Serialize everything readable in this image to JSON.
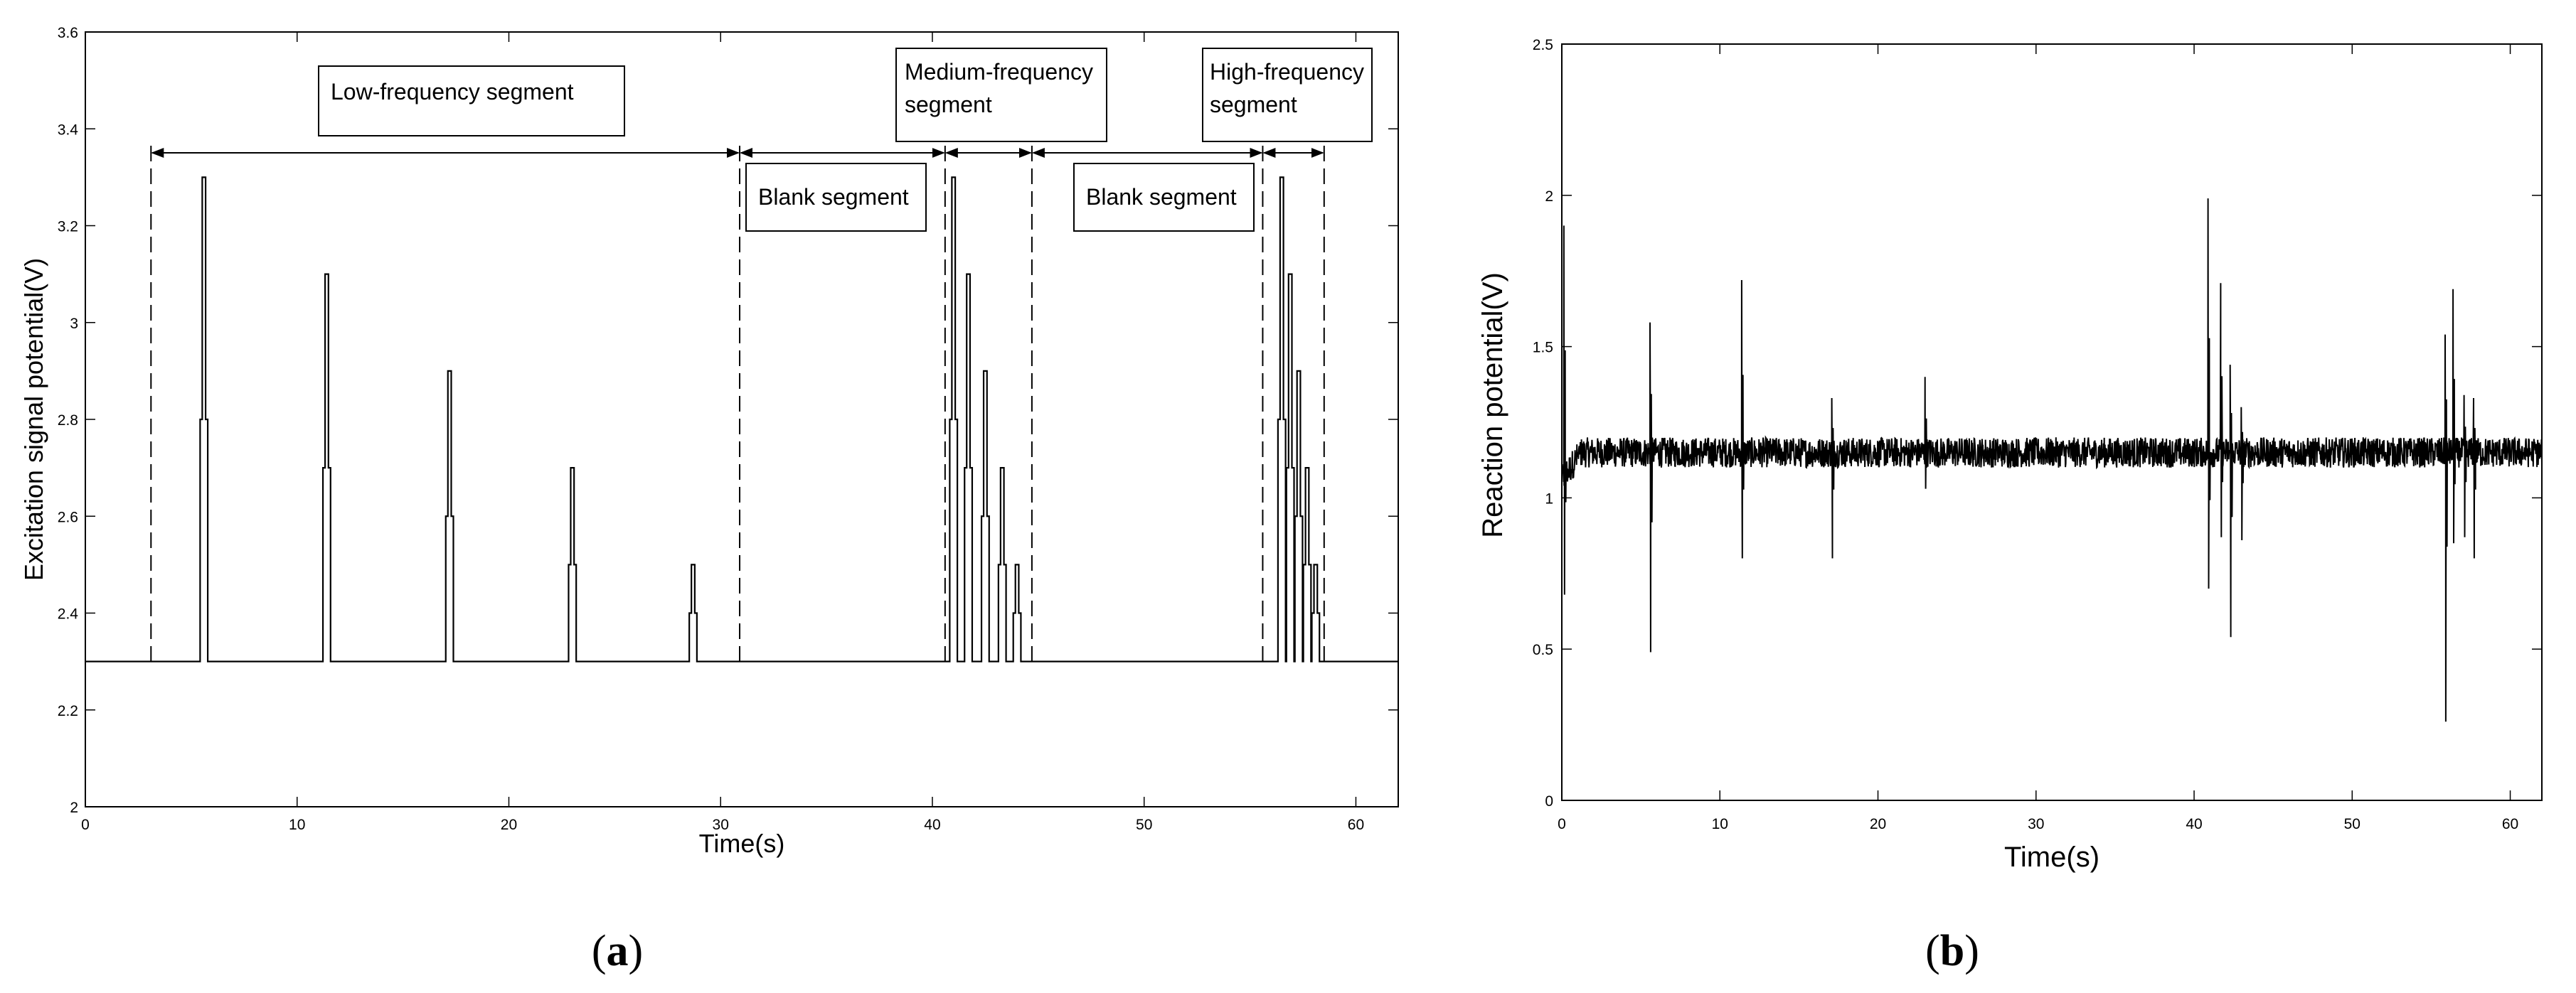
{
  "figure": {
    "panel_a_label": {
      "open": "(",
      "letter": "a",
      "close": ")"
    },
    "panel_b_label": {
      "open": "(",
      "letter": "b",
      "close": ")"
    }
  },
  "chart_data": [
    {
      "type": "line",
      "panel": "a",
      "title": "",
      "xlabel": "Time(s)",
      "ylabel": "Excitation signal potential(V)",
      "xlim": [
        0,
        62
      ],
      "ylim": [
        2,
        3.6
      ],
      "xticks": [
        0,
        10,
        20,
        30,
        40,
        50,
        60
      ],
      "yticks": [
        2,
        2.2,
        2.4,
        2.6,
        2.8,
        3,
        3.2,
        3.4,
        3.6
      ],
      "ytick_labels": [
        "2",
        "2.2",
        "2.4",
        "2.6",
        "2.8",
        "3",
        "3.2",
        "3.4",
        "3.6"
      ],
      "baseline": 2.3,
      "line_color": "#000000",
      "pulses": [
        {
          "t": 5.6,
          "peak": 3.3
        },
        {
          "t": 11.4,
          "peak": 3.1
        },
        {
          "t": 17.2,
          "peak": 2.9
        },
        {
          "t": 23.0,
          "peak": 2.7
        },
        {
          "t": 28.7,
          "peak": 2.5
        },
        {
          "t": 41.0,
          "peak": 3.3
        },
        {
          "t": 41.7,
          "peak": 3.1
        },
        {
          "t": 42.5,
          "peak": 2.9
        },
        {
          "t": 43.3,
          "peak": 2.7
        },
        {
          "t": 44.0,
          "peak": 2.5
        },
        {
          "t": 56.5,
          "peak": 3.3
        },
        {
          "t": 56.9,
          "peak": 3.1
        },
        {
          "t": 57.3,
          "peak": 2.9
        },
        {
          "t": 57.7,
          "peak": 2.7
        },
        {
          "t": 58.1,
          "peak": 2.5
        }
      ],
      "boundaries": [
        3.1,
        30.9,
        40.6,
        44.7,
        55.6,
        58.5
      ],
      "segments": [
        {
          "label": "Low-frequency segment",
          "start": 3.1,
          "end": 30.9
        },
        {
          "label": "Blank segment",
          "start": 30.9,
          "end": 40.6
        },
        {
          "label": "Medium-frequency segment",
          "start": 40.6,
          "end": 44.7
        },
        {
          "label": "Blank segment",
          "start": 44.7,
          "end": 55.6
        },
        {
          "label": "High-frequency segment",
          "start": 55.6,
          "end": 58.5
        }
      ],
      "annotation_lines": {
        "low": [
          "Low-frequency segment"
        ],
        "blank1": [
          "Blank segment"
        ],
        "medium": [
          "Medium-frequency",
          "segment"
        ],
        "blank2": [
          "Blank segment"
        ],
        "high": [
          "High-frequency",
          "segment"
        ]
      }
    },
    {
      "type": "line",
      "panel": "b",
      "title": "",
      "xlabel": "Time(s)",
      "ylabel": "Reaction potential(V)",
      "xlim": [
        0,
        62
      ],
      "ylim": [
        0,
        2.5
      ],
      "xticks": [
        0,
        10,
        20,
        30,
        40,
        50,
        60
      ],
      "yticks": [
        0,
        0.5,
        1,
        1.5,
        2,
        2.5
      ],
      "ytick_labels": [
        "0",
        "0.5",
        "1",
        "1.5",
        "2",
        "2.5"
      ],
      "baseline": 1.15,
      "noise_amplitude": 0.05,
      "line_color": "#000000",
      "spikes": [
        {
          "t": 0.15,
          "max": 1.9,
          "min": 0.68
        },
        {
          "t": 5.6,
          "max": 1.58,
          "min": 0.49
        },
        {
          "t": 11.4,
          "max": 1.72,
          "min": 0.8
        },
        {
          "t": 17.1,
          "max": 1.33,
          "min": 0.8
        },
        {
          "t": 23.0,
          "max": 1.4,
          "min": 1.03
        },
        {
          "t": 40.9,
          "max": 1.99,
          "min": 0.7
        },
        {
          "t": 41.7,
          "max": 1.71,
          "min": 0.87
        },
        {
          "t": 42.3,
          "max": 1.44,
          "min": 0.54
        },
        {
          "t": 43.0,
          "max": 1.3,
          "min": 0.86
        },
        {
          "t": 55.9,
          "max": 1.54,
          "min": 0.26
        },
        {
          "t": 56.4,
          "max": 1.69,
          "min": 0.85
        },
        {
          "t": 57.1,
          "max": 1.34,
          "min": 0.87
        },
        {
          "t": 57.7,
          "max": 1.33,
          "min": 0.8
        }
      ]
    }
  ]
}
